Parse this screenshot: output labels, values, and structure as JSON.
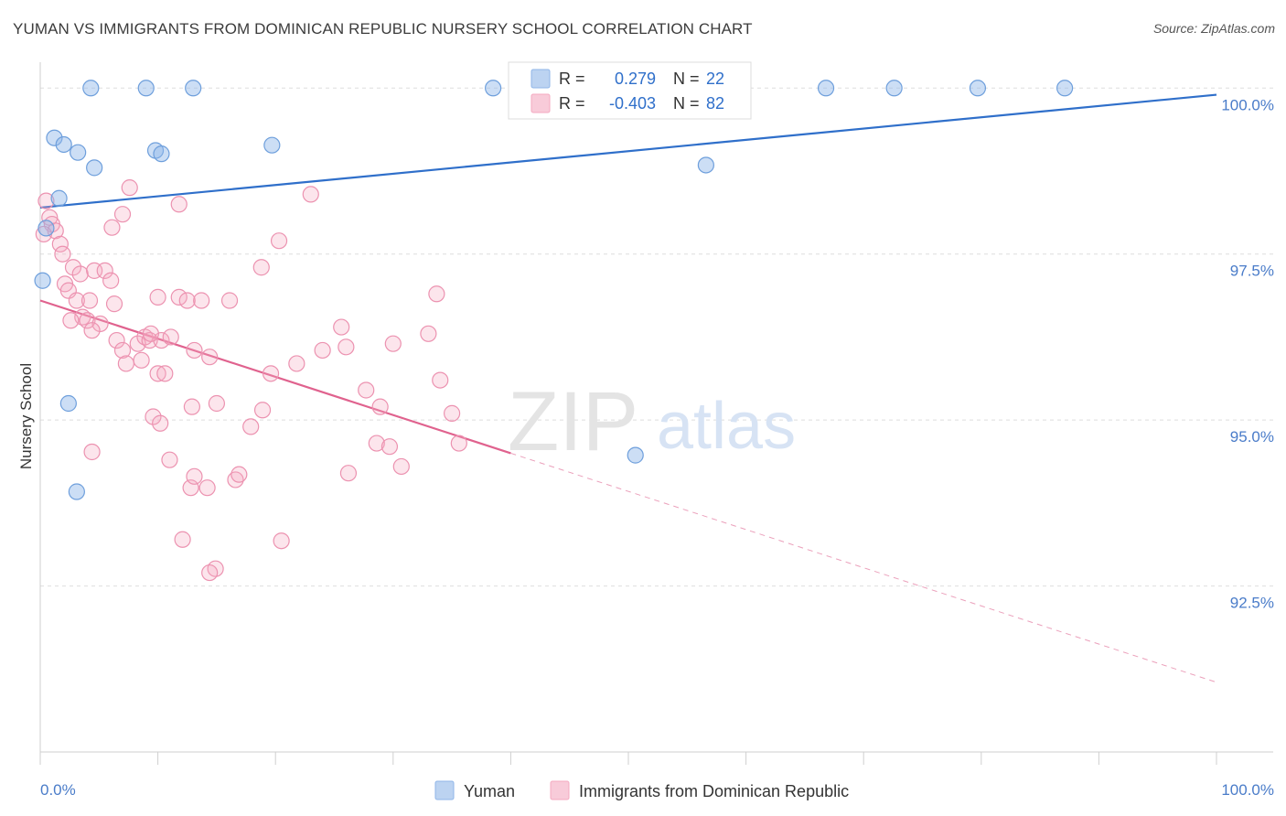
{
  "title": "YUMAN VS IMMIGRANTS FROM DOMINICAN REPUBLIC NURSERY SCHOOL CORRELATION CHART",
  "source": "Source: ZipAtlas.com",
  "watermark": {
    "zip": "ZIP",
    "atlas": "atlas"
  },
  "chart_data": {
    "type": "scatter",
    "ylabel": "Nursery School",
    "xlim": [
      0,
      100
    ],
    "ylim": [
      90.0,
      100.5
    ],
    "x_ticks_labeled": [
      {
        "value": 0,
        "label": "0.0%"
      },
      {
        "value": 100,
        "label": "100.0%"
      }
    ],
    "y_ticks": [
      {
        "value": 100.0,
        "label": "100.0%"
      },
      {
        "value": 97.5,
        "label": "97.5%"
      },
      {
        "value": 95.0,
        "label": "95.0%"
      },
      {
        "value": 92.5,
        "label": "92.5%"
      }
    ],
    "grid": "horizontal dashed",
    "legend_position": "top-center",
    "colors": {
      "Yuman": "#8fb6e8",
      "Immigrants from Dominican Republic": "#f4a9c0",
      "yuman_line": "#2f6fca",
      "dominican_line": "#e0628e",
      "stat_text": "#2f6fca"
    },
    "stats": [
      {
        "r_label": "R =",
        "r": "0.279",
        "n_label": "N =",
        "n": "22"
      },
      {
        "r_label": "R =",
        "r": "-0.403",
        "n_label": "N =",
        "n": "82"
      }
    ],
    "series": [
      {
        "name": "Yuman",
        "points": [
          [
            4.3,
            100.0
          ],
          [
            9.0,
            100.0
          ],
          [
            13.0,
            100.0
          ],
          [
            38.5,
            100.0
          ],
          [
            66.8,
            100.0
          ],
          [
            72.6,
            100.0
          ],
          [
            79.7,
            100.0
          ],
          [
            87.1,
            100.0
          ],
          [
            1.2,
            99.25
          ],
          [
            2.0,
            99.15
          ],
          [
            3.2,
            99.03
          ],
          [
            4.6,
            98.8
          ],
          [
            9.8,
            99.06
          ],
          [
            10.3,
            99.01
          ],
          [
            19.7,
            99.14
          ],
          [
            56.6,
            98.84
          ],
          [
            1.6,
            98.34
          ],
          [
            0.5,
            97.89
          ],
          [
            0.2,
            97.1
          ],
          [
            2.4,
            95.25
          ],
          [
            3.1,
            93.92
          ],
          [
            50.6,
            94.47
          ]
        ],
        "trend": {
          "x0": 0,
          "y0": 98.2,
          "x1": 100,
          "y1": 99.9
        }
      },
      {
        "name": "Immigrants from Dominican Republic",
        "points": [
          [
            0.5,
            98.3
          ],
          [
            0.8,
            98.05
          ],
          [
            1.0,
            97.95
          ],
          [
            1.3,
            97.85
          ],
          [
            0.3,
            97.8
          ],
          [
            1.7,
            97.65
          ],
          [
            1.9,
            97.5
          ],
          [
            2.8,
            97.3
          ],
          [
            3.4,
            97.2
          ],
          [
            4.6,
            97.25
          ],
          [
            5.5,
            97.25
          ],
          [
            6.0,
            97.1
          ],
          [
            2.1,
            97.05
          ],
          [
            2.4,
            96.95
          ],
          [
            3.1,
            96.8
          ],
          [
            4.2,
            96.8
          ],
          [
            6.3,
            96.75
          ],
          [
            3.6,
            96.55
          ],
          [
            2.6,
            96.5
          ],
          [
            4.0,
            96.5
          ],
          [
            5.1,
            96.45
          ],
          [
            4.4,
            96.35
          ],
          [
            6.5,
            96.2
          ],
          [
            7.0,
            96.05
          ],
          [
            8.3,
            96.15
          ],
          [
            8.9,
            96.25
          ],
          [
            7.3,
            95.85
          ],
          [
            8.6,
            95.9
          ],
          [
            9.3,
            96.2
          ],
          [
            6.1,
            97.9
          ],
          [
            7.6,
            98.5
          ],
          [
            7.0,
            98.1
          ],
          [
            11.8,
            98.25
          ],
          [
            10.0,
            96.85
          ],
          [
            11.8,
            96.85
          ],
          [
            12.5,
            96.8
          ],
          [
            13.7,
            96.8
          ],
          [
            16.1,
            96.8
          ],
          [
            10.0,
            95.7
          ],
          [
            10.6,
            95.7
          ],
          [
            13.1,
            96.05
          ],
          [
            14.4,
            95.95
          ],
          [
            9.6,
            95.05
          ],
          [
            10.2,
            94.95
          ],
          [
            12.9,
            95.2
          ],
          [
            15.0,
            95.25
          ],
          [
            18.9,
            95.15
          ],
          [
            17.9,
            94.9
          ],
          [
            11.0,
            94.4
          ],
          [
            12.8,
            93.98
          ],
          [
            14.2,
            93.98
          ],
          [
            13.1,
            94.15
          ],
          [
            16.6,
            94.1
          ],
          [
            16.9,
            94.18
          ],
          [
            12.1,
            93.2
          ],
          [
            14.9,
            92.76
          ],
          [
            14.4,
            92.7
          ],
          [
            20.5,
            93.18
          ],
          [
            4.4,
            94.52
          ],
          [
            18.8,
            97.3
          ],
          [
            20.3,
            97.7
          ],
          [
            19.6,
            95.7
          ],
          [
            21.8,
            95.85
          ],
          [
            23.0,
            98.4
          ],
          [
            24.0,
            96.05
          ],
          [
            25.6,
            96.4
          ],
          [
            26.0,
            96.1
          ],
          [
            26.2,
            94.2
          ],
          [
            27.7,
            95.45
          ],
          [
            28.9,
            95.2
          ],
          [
            28.6,
            94.65
          ],
          [
            29.7,
            94.6
          ],
          [
            30.0,
            96.15
          ],
          [
            30.7,
            94.3
          ],
          [
            33.0,
            96.3
          ],
          [
            33.7,
            96.9
          ],
          [
            34.0,
            95.6
          ],
          [
            35.0,
            95.1
          ],
          [
            35.6,
            94.65
          ],
          [
            10.3,
            96.2
          ],
          [
            11.1,
            96.25
          ],
          [
            9.4,
            96.3
          ]
        ],
        "trend": {
          "x0": 0,
          "y0": 96.8,
          "x1": 40,
          "y1": 94.5
        },
        "trend_extension": {
          "x0": 40,
          "y0": 94.5,
          "x1": 100,
          "y1": 91.05
        }
      }
    ]
  }
}
